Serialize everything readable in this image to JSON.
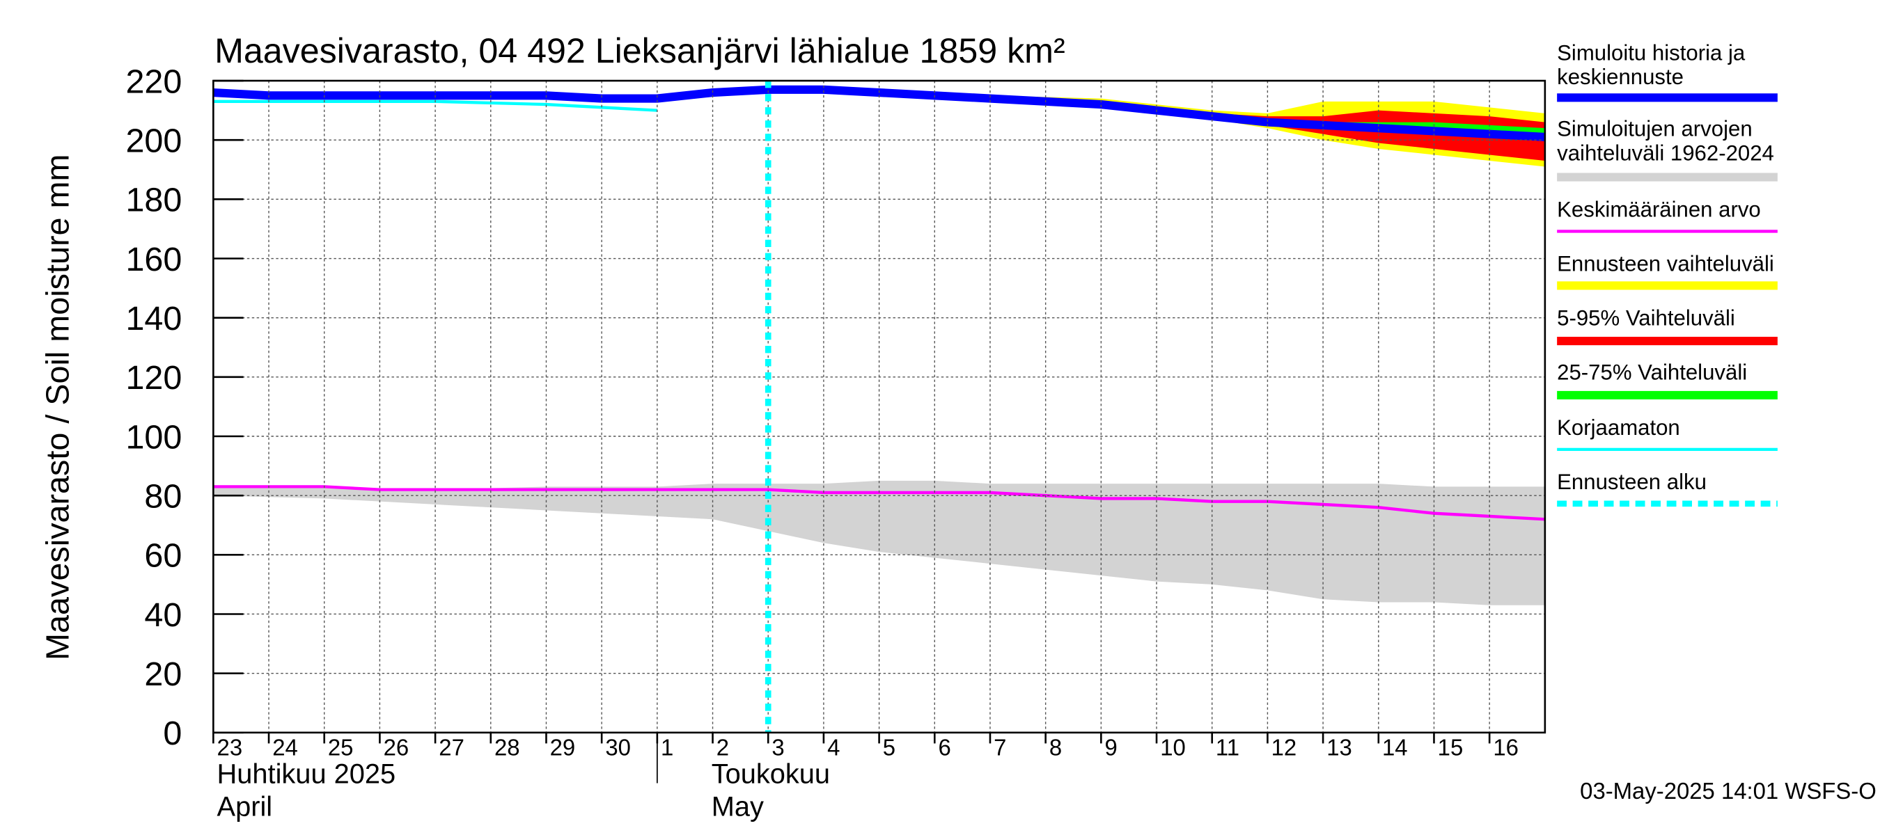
{
  "chart_data": {
    "type": "area",
    "title": "Maavesivarasto, 04 492 Lieksanjärvi lähialue 1859 km²",
    "ylabel": "Maavesivarasto / Soil moisture   mm",
    "ylim": [
      0,
      220
    ],
    "yticks": [
      "0",
      "20",
      "40",
      "60",
      "80",
      "100",
      "120",
      "140",
      "160",
      "180",
      "200",
      "220"
    ],
    "xlim": [
      0,
      24
    ],
    "xticks": [
      "23",
      "24",
      "25",
      "26",
      "27",
      "28",
      "29",
      "30",
      "1",
      "2",
      "3",
      "4",
      "5",
      "6",
      "7",
      "8",
      "9",
      "10",
      "11",
      "12",
      "13",
      "14",
      "15",
      "16"
    ],
    "month_labels": [
      {
        "fi": "Huhtikuu  2025",
        "en": "April"
      },
      {
        "fi": "Toukokuu",
        "en": "May"
      }
    ],
    "grid": true,
    "legend_position": "right",
    "forecast_start_x": 10,
    "timestamp": "03-May-2025 14:01 WSFS-O",
    "legend": [
      {
        "label": "Simuloitu historia ja keskiennuste",
        "color": "#0000ff",
        "style": "solid-thick"
      },
      {
        "label": "Simuloitujen arvojen vaihteluväli 1962-2024",
        "color": "#d3d3d3",
        "style": "solid"
      },
      {
        "label": "Keskimääräinen arvo",
        "color": "#ff00ff",
        "style": "solid-thin"
      },
      {
        "label": "Ennusteen vaihteluväli",
        "color": "#ffff00",
        "style": "solid"
      },
      {
        "label": "5-95% Vaihteluväli",
        "color": "#ff0000",
        "style": "solid"
      },
      {
        "label": "25-75% Vaihteluväli",
        "color": "#00ff00",
        "style": "solid"
      },
      {
        "label": "Korjaamaton",
        "color": "#00ffff",
        "style": "solid-thin"
      },
      {
        "label": "Ennusteen alku",
        "color": "#00ffff",
        "style": "dotted"
      }
    ],
    "series": [
      {
        "name": "Simuloitujen arvojen vaihteluväli 1962-2024",
        "kind": "band",
        "x": [
          0,
          2,
          4,
          6,
          8,
          9,
          10,
          11,
          12,
          13,
          14,
          15,
          16,
          17,
          18,
          19,
          20,
          21,
          22,
          23,
          24
        ],
        "upper": [
          83,
          83,
          82,
          83,
          83,
          84,
          84,
          84,
          85,
          85,
          84,
          84,
          84,
          84,
          84,
          84,
          84,
          84,
          83,
          83,
          83
        ],
        "lower": [
          80,
          79,
          77,
          75,
          73,
          72,
          68,
          64,
          61,
          59,
          57,
          55,
          53,
          51,
          50,
          48,
          45,
          44,
          44,
          43,
          43
        ]
      },
      {
        "name": "Ennusteen vaihteluväli",
        "kind": "band",
        "x": [
          10,
          12,
          14,
          16,
          17,
          18,
          19,
          20,
          21,
          22,
          23,
          24
        ],
        "upper": [
          217,
          216,
          215,
          214,
          212,
          210,
          209,
          213,
          213,
          213,
          211,
          209
        ],
        "lower": [
          217,
          216,
          215,
          213,
          211,
          207,
          204,
          200,
          197,
          195,
          193,
          191
        ]
      },
      {
        "name": "5-95% Vaihteluväli",
        "kind": "band",
        "x": [
          10,
          12,
          14,
          16,
          17,
          18,
          19,
          20,
          21,
          22,
          23,
          24
        ],
        "upper": [
          217,
          216,
          215,
          213,
          211,
          209,
          208,
          208,
          210,
          209,
          208,
          206
        ],
        "lower": [
          217,
          216,
          215,
          213,
          211,
          208,
          205,
          202,
          199,
          197,
          195,
          193
        ]
      },
      {
        "name": "25-75% Vaihteluväli",
        "kind": "band",
        "x": [
          10,
          12,
          14,
          16,
          17,
          18,
          19,
          20,
          21,
          22,
          23,
          24
        ],
        "upper": [
          217,
          216,
          215,
          213,
          211,
          209,
          207,
          206,
          206,
          206,
          205,
          204
        ],
        "lower": [
          217,
          216,
          215,
          213,
          211,
          208,
          206,
          204,
          203,
          202,
          201,
          200
        ]
      },
      {
        "name": "Keskimääräinen arvo",
        "kind": "line",
        "x": [
          0,
          1,
          2,
          3,
          4,
          5,
          6,
          7,
          8,
          9,
          10,
          11,
          12,
          13,
          14,
          15,
          16,
          17,
          18,
          19,
          20,
          21,
          22,
          23,
          24
        ],
        "y": [
          83,
          83,
          83,
          82,
          82,
          82,
          82,
          82,
          82,
          82,
          82,
          81,
          81,
          81,
          81,
          80,
          79,
          79,
          78,
          78,
          77,
          76,
          74,
          73,
          72
        ]
      },
      {
        "name": "Korjaamaton",
        "kind": "line",
        "x": [
          0,
          2,
          4,
          6,
          8
        ],
        "y": [
          213,
          213,
          213,
          212,
          210
        ]
      },
      {
        "name": "Simuloitu historia ja keskiennuste",
        "kind": "line",
        "x": [
          0,
          1,
          2,
          3,
          4,
          5,
          6,
          7,
          8,
          9,
          10,
          11,
          12,
          13,
          14,
          15,
          16,
          17,
          18,
          19,
          20,
          21,
          22,
          23,
          24
        ],
        "y": [
          216,
          215,
          215,
          215,
          215,
          215,
          215,
          214,
          214,
          216,
          217,
          217,
          216,
          215,
          214,
          213,
          212,
          210,
          208,
          206,
          205,
          204,
          203,
          202,
          201
        ]
      }
    ]
  }
}
